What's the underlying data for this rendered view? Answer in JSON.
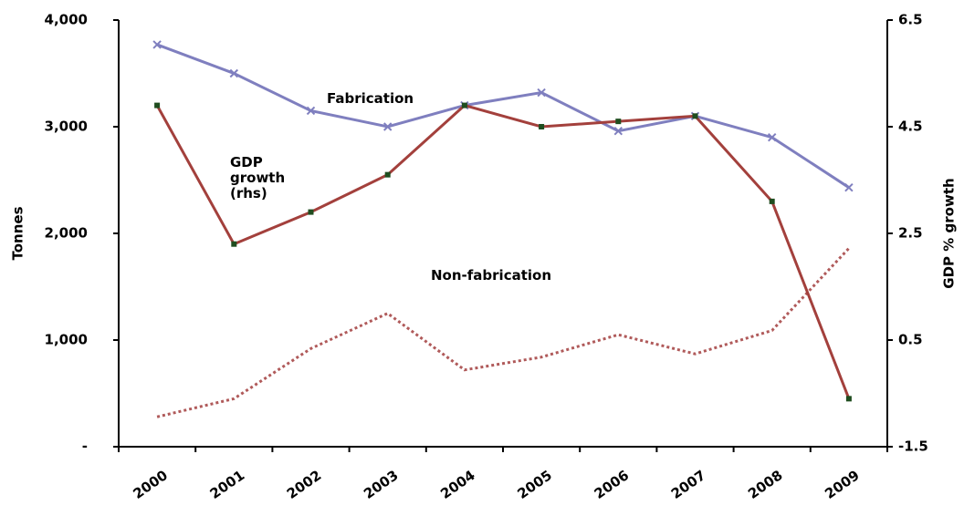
{
  "chart_data": {
    "type": "line",
    "categories": [
      "2000",
      "2001",
      "2002",
      "2003",
      "2004",
      "2005",
      "2006",
      "2007",
      "2008",
      "2009"
    ],
    "ylabel": "Tonnes",
    "y2label": "GDP % growth",
    "ylim": [
      0,
      4000
    ],
    "yticks": [
      {
        "value": 0,
        "label": "-"
      },
      {
        "value": 1000,
        "label": "1,000"
      },
      {
        "value": 2000,
        "label": "2,000"
      },
      {
        "value": 3000,
        "label": "3,000"
      },
      {
        "value": 4000,
        "label": "4,000"
      }
    ],
    "y2lim": [
      -1.5,
      6.5
    ],
    "y2ticks": [
      -1.5,
      0.5,
      2.5,
      4.5,
      6.5
    ],
    "series": [
      {
        "name": "Fabrication",
        "color": "#7f7fbf",
        "style": "solid",
        "marker": "cross",
        "values": [
          3770,
          3500,
          3150,
          3000,
          3200,
          3320,
          2960,
          3100,
          2900,
          2430
        ]
      },
      {
        "name": "Non-fabrication",
        "color": "#b05a5a",
        "style": "dotted",
        "values": [
          280,
          450,
          920,
          1250,
          720,
          840,
          1050,
          870,
          1090,
          1860
        ]
      },
      {
        "name": "GDP growth (rhs)",
        "color": "#a3403c",
        "style": "solid",
        "marker": "square",
        "marker_color": "#1f4d1f",
        "axis": "y2",
        "values": [
          4.9,
          2.3,
          2.9,
          3.6,
          4.9,
          4.5,
          4.6,
          4.7,
          3.1,
          -0.6
        ]
      }
    ]
  }
}
